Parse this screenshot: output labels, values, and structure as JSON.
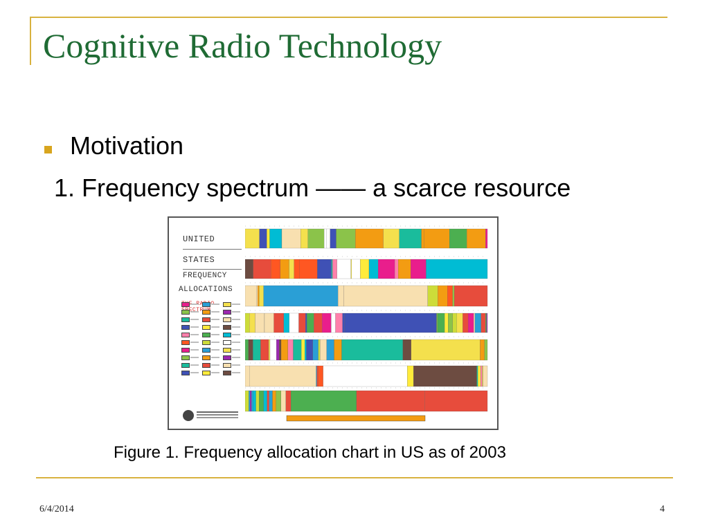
{
  "slide": {
    "title": "Cognitive Radio Technology",
    "bullet": "Motivation",
    "subpoint": "1. Frequency spectrum —— a scarce resource",
    "caption": "Figure 1.  Frequency allocation chart in US as of 2003",
    "footer_date": "6/4/2014",
    "page_number": "4"
  },
  "figure": {
    "legend_lines": [
      "UNITED",
      "STATES",
      "FREQUENCY",
      "ALLOCATIONS"
    ],
    "legend_subtitle": "THE RADIO SPECTRUM",
    "palette": [
      "#e91e8c",
      "#2a9fd6",
      "#f4e04d",
      "#8bc34a",
      "#f39c12",
      "#9c27b0",
      "#1abc9c",
      "#e74c3c",
      "#f8e0b0",
      "#3f51b5",
      "#ffeb3b",
      "#6d4c41",
      "#ff80ab",
      "#4caf50",
      "#00bcd4",
      "#ff5722",
      "#cddc39",
      "#ffffff"
    ]
  },
  "colors": {
    "title": "#1f6b34",
    "accent": "#d8b23f",
    "bullet": "#d8a51e"
  }
}
